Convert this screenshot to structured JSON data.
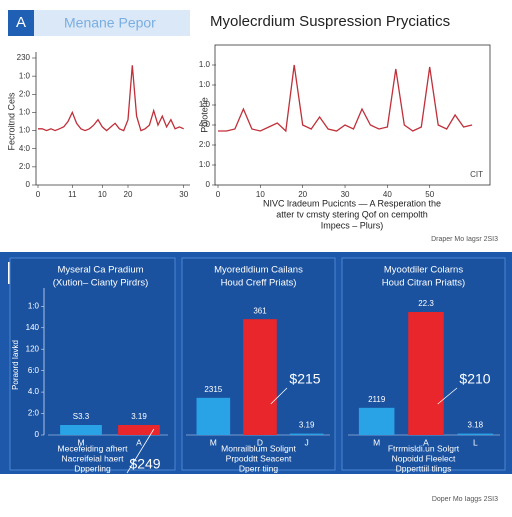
{
  "header": {
    "badge": "A",
    "title": "Menane Pepor",
    "heading": "Myolecrdium Suspression Pryciatics"
  },
  "caption": [
    "NIVC lradeum Pucicnts — A Resperation the",
    "atter tv cmsty stering Qof on cempolth",
    "Impecs – Plurs)"
  ],
  "source": "Draper Mo Iagsr 2SI3",
  "section_badge": "M.",
  "footer": "Doper Mo Iaggs 2SI3",
  "chart_data": [
    {
      "type": "line",
      "ylabel": "Fecroitnd Cels",
      "color": "#c0303a",
      "x": [
        0,
        1,
        2,
        3,
        4,
        5,
        6,
        7,
        8,
        9,
        10,
        11,
        12,
        13,
        14,
        15,
        16,
        17,
        18,
        19,
        20,
        21,
        22,
        23,
        24,
        25,
        26,
        27,
        28,
        29,
        30,
        31,
        32,
        33,
        34
      ],
      "values": [
        3.1,
        3.1,
        3.0,
        3.1,
        3.0,
        3.1,
        3.2,
        3.5,
        4.0,
        3.4,
        3.1,
        3.0,
        3.1,
        3.3,
        3.6,
        3.2,
        3.0,
        3.2,
        3.4,
        3.1,
        3.0,
        3.6,
        6.6,
        3.8,
        3.0,
        3.1,
        3.3,
        4.1,
        3.3,
        3.8,
        3.2,
        3.6,
        3.1,
        3.2,
        3.1
      ],
      "xlim": [
        0,
        35
      ],
      "xticks": [
        0,
        {
          "value": 8,
          "label": "11"
        },
        {
          "value": 15,
          "label": "10"
        },
        {
          "value": 21,
          "label": "20"
        },
        {
          "value": 34,
          "label": "30"
        }
      ],
      "ylim": [
        0,
        7
      ],
      "yticks": [
        0,
        {
          "value": 1,
          "label": "2:0"
        },
        {
          "value": 2,
          "label": "4:0"
        },
        {
          "value": 3,
          "label": "1:0"
        },
        {
          "value": 4,
          "label": "1:0"
        },
        {
          "value": 5,
          "label": "2:0"
        },
        {
          "value": 6,
          "label": "1:0"
        },
        {
          "value": 7,
          "label": "230"
        }
      ]
    },
    {
      "type": "line",
      "ylabel": "Polotene",
      "color": "#c0303a",
      "annotation": "CIT",
      "x": [
        0,
        2,
        4,
        6,
        8,
        10,
        12,
        14,
        16,
        18,
        20,
        22,
        24,
        26,
        28,
        30,
        32,
        34,
        36,
        38,
        40,
        42,
        44,
        46,
        48,
        50,
        52,
        54,
        56,
        58,
        60
      ],
      "values": [
        2.7,
        2.7,
        2.8,
        3.8,
        2.8,
        2.7,
        2.9,
        3.1,
        2.7,
        6.0,
        3.0,
        2.8,
        3.4,
        2.8,
        2.7,
        3.0,
        2.8,
        3.8,
        3.0,
        2.8,
        2.9,
        5.8,
        3.0,
        2.7,
        2.9,
        5.9,
        3.0,
        2.8,
        3.5,
        2.9,
        3.0
      ],
      "xlim": [
        0,
        64
      ],
      "xticks": [
        0,
        10,
        20,
        30,
        40,
        50
      ],
      "ylim": [
        0,
        7
      ],
      "yticks": [
        0,
        {
          "value": 1,
          "label": "1:0"
        },
        {
          "value": 2,
          "label": "2:0"
        },
        {
          "value": 3,
          "label": "4:0"
        },
        {
          "value": 4,
          "label": "1:0"
        },
        {
          "value": 5,
          "label": "1:0"
        },
        {
          "value": 6,
          "label": "1.0"
        }
      ]
    },
    {
      "type": "bar",
      "title": [
        "Myseral Ca Pradium",
        "(Xution– Cianty Pirdrs)"
      ],
      "ylabel": "Poraord Iavkd",
      "categories": [
        "M",
        "A"
      ],
      "values": [
        7,
        7
      ],
      "colors": [
        "#29a3e6",
        "#e8262b"
      ],
      "bar_texts": [
        "S3.3",
        "3.19"
      ],
      "callout": "$249",
      "caption": [
        "Mecefeiding afhert",
        "Nacreifeial haert",
        "Dpperling"
      ],
      "ylim": [
        0,
        100
      ],
      "yticks": [
        0,
        {
          "value": 15,
          "label": "2:0"
        },
        {
          "value": 30,
          "label": "4.0"
        },
        {
          "value": 45,
          "label": "6:0"
        },
        {
          "value": 60,
          "label": "120"
        },
        {
          "value": 75,
          "label": "140"
        },
        {
          "value": 90,
          "label": "1:0"
        }
      ]
    },
    {
      "type": "bar",
      "title": [
        "Myoredldium Cailans",
        "Houd Creff Priats)"
      ],
      "categories": [
        "M",
        "D",
        "J"
      ],
      "values": [
        26,
        81,
        1
      ],
      "colors": [
        "#29a3e6",
        "#e8262b",
        "#29a3e6"
      ],
      "bar_texts": [
        "2315",
        "361",
        "3.19"
      ],
      "callout": "$215",
      "caption": [
        "Monrailblum Solignt",
        "Prpoddtt Seacent",
        "Dperr tiing"
      ],
      "ylim": [
        0,
        100
      ]
    },
    {
      "type": "bar",
      "title": [
        "Myootdiler Colarns",
        "Houd Citran Priatts)"
      ],
      "categories": [
        "M",
        "A",
        "L"
      ],
      "values": [
        19,
        86,
        1
      ],
      "colors": [
        "#29a3e6",
        "#e8262b",
        "#29a3e6"
      ],
      "bar_texts": [
        "2119",
        "22.3",
        "3.18"
      ],
      "callout": "$210",
      "caption": [
        "Ftrrmisldi.un Solgrt",
        "Nopoidd Fleelect",
        "Dpperttiil tlings"
      ],
      "ylim": [
        0,
        100
      ]
    }
  ]
}
